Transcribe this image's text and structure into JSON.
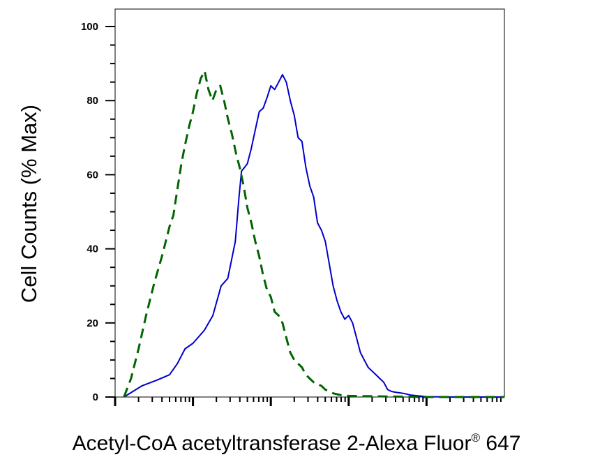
{
  "chart_data": {
    "type": "line",
    "title": "",
    "xlabel": "Acetyl-CoA acetyltransferase 2-Alexa Fluor® 647",
    "ylabel": "Cell Counts (% Max)",
    "x_scale": "log",
    "xlim": [
      1,
      100000
    ],
    "ylim": [
      0,
      105
    ],
    "y_ticks": [
      "0",
      "20",
      "40",
      "60",
      "80",
      "100"
    ],
    "y_tick_values": [
      0,
      20,
      40,
      60,
      80,
      100
    ],
    "grid": false,
    "legend": "none",
    "series": [
      {
        "color": "#0000cc",
        "style": "solid",
        "points": [
          [
            1.3,
            0
          ],
          [
            2.2,
            3
          ],
          [
            3.4,
            4.5
          ],
          [
            5.0,
            6
          ],
          [
            6.3,
            9
          ],
          [
            7.9,
            13
          ],
          [
            10.0,
            14.5
          ],
          [
            14,
            18
          ],
          [
            18,
            22
          ],
          [
            23,
            30
          ],
          [
            28,
            32
          ],
          [
            32,
            38
          ],
          [
            35,
            42
          ],
          [
            39,
            54
          ],
          [
            42,
            61
          ],
          [
            46,
            62
          ],
          [
            50,
            63
          ],
          [
            56,
            67
          ],
          [
            63,
            72
          ],
          [
            71,
            77
          ],
          [
            80,
            78
          ],
          [
            90,
            81
          ],
          [
            100,
            84
          ],
          [
            112,
            83
          ],
          [
            126,
            85
          ],
          [
            141,
            87
          ],
          [
            158,
            85
          ],
          [
            178,
            80
          ],
          [
            200,
            76
          ],
          [
            224,
            70
          ],
          [
            251,
            69
          ],
          [
            282,
            62
          ],
          [
            316,
            57
          ],
          [
            355,
            54
          ],
          [
            398,
            47
          ],
          [
            447,
            45
          ],
          [
            501,
            42
          ],
          [
            562,
            36
          ],
          [
            631,
            30
          ],
          [
            708,
            26
          ],
          [
            794,
            23
          ],
          [
            891,
            21
          ],
          [
            1000,
            22
          ],
          [
            1122,
            20
          ],
          [
            1259,
            16
          ],
          [
            1413,
            12
          ],
          [
            1585,
            10
          ],
          [
            1778,
            8
          ],
          [
            1995,
            7
          ],
          [
            2239,
            6
          ],
          [
            2512,
            5
          ],
          [
            2818,
            4
          ],
          [
            3162,
            2
          ],
          [
            3548,
            1.5
          ],
          [
            3981,
            1.3
          ],
          [
            5012,
            1
          ],
          [
            6310,
            0.5
          ],
          [
            7943,
            0.3
          ],
          [
            10000,
            0.1
          ],
          [
            20000,
            0
          ],
          [
            100000,
            0
          ]
        ]
      },
      {
        "color": "#006400",
        "style": "dashed",
        "points": [
          [
            1.3,
            0
          ],
          [
            1.6,
            5
          ],
          [
            2.0,
            13
          ],
          [
            2.5,
            22
          ],
          [
            3.2,
            31
          ],
          [
            4.0,
            38
          ],
          [
            5.0,
            46
          ],
          [
            5.6,
            49
          ],
          [
            6.3,
            56
          ],
          [
            7.1,
            63
          ],
          [
            7.9,
            68
          ],
          [
            8.9,
            73
          ],
          [
            10.0,
            77
          ],
          [
            11.2,
            82
          ],
          [
            12.6,
            86
          ],
          [
            14.1,
            88
          ],
          [
            15.8,
            83
          ],
          [
            17.8,
            80
          ],
          [
            20.0,
            83
          ],
          [
            22.4,
            84
          ],
          [
            25.1,
            80
          ],
          [
            28.2,
            75
          ],
          [
            31.6,
            71
          ],
          [
            35.5,
            66
          ],
          [
            39.8,
            62
          ],
          [
            44.7,
            57
          ],
          [
            50.1,
            51
          ],
          [
            56.2,
            47
          ],
          [
            63.1,
            42
          ],
          [
            70.8,
            38
          ],
          [
            79.4,
            33
          ],
          [
            89.1,
            29
          ],
          [
            100,
            27
          ],
          [
            112,
            23
          ],
          [
            126,
            22
          ],
          [
            141,
            20
          ],
          [
            158,
            16
          ],
          [
            178,
            12
          ],
          [
            200,
            10
          ],
          [
            224,
            9
          ],
          [
            251,
            8
          ],
          [
            282,
            6
          ],
          [
            316,
            5
          ],
          [
            355,
            4
          ],
          [
            398,
            3.5
          ],
          [
            447,
            3
          ],
          [
            501,
            2
          ],
          [
            631,
            1
          ],
          [
            794,
            0.5
          ],
          [
            1000,
            0.3
          ],
          [
            2000,
            0.2
          ],
          [
            5000,
            0.1
          ],
          [
            10000,
            0
          ],
          [
            100000,
            0
          ]
        ]
      }
    ]
  }
}
